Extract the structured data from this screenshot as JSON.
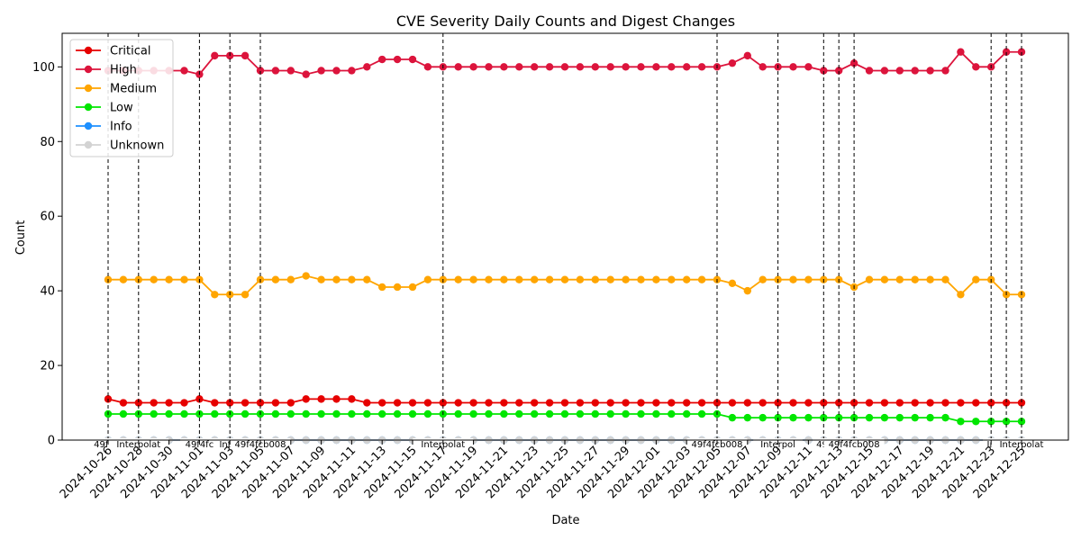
{
  "chart_data": {
    "type": "line",
    "title": "CVE Severity Daily Counts and Digest Changes",
    "xlabel": "Date",
    "ylabel": "Count",
    "ylim": [
      0,
      109
    ],
    "y_ticks": [
      0,
      20,
      40,
      60,
      80,
      100
    ],
    "grid": false,
    "legend_position": "top-left",
    "x": [
      "2024-10-26",
      "2024-10-27",
      "2024-10-28",
      "2024-10-29",
      "2024-10-30",
      "2024-10-31",
      "2024-11-01",
      "2024-11-02",
      "2024-11-03",
      "2024-11-04",
      "2024-11-05",
      "2024-11-06",
      "2024-11-07",
      "2024-11-08",
      "2024-11-09",
      "2024-11-10",
      "2024-11-11",
      "2024-11-12",
      "2024-11-13",
      "2024-11-14",
      "2024-11-15",
      "2024-11-16",
      "2024-11-17",
      "2024-11-18",
      "2024-11-19",
      "2024-11-20",
      "2024-11-21",
      "2024-11-22",
      "2024-11-23",
      "2024-11-24",
      "2024-11-25",
      "2024-11-26",
      "2024-11-27",
      "2024-11-28",
      "2024-11-29",
      "2024-11-30",
      "2024-12-01",
      "2024-12-02",
      "2024-12-03",
      "2024-12-04",
      "2024-12-05",
      "2024-12-06",
      "2024-12-07",
      "2024-12-08",
      "2024-12-09",
      "2024-12-10",
      "2024-12-11",
      "2024-12-12",
      "2024-12-13",
      "2024-12-14",
      "2024-12-15",
      "2024-12-16",
      "2024-12-17",
      "2024-12-18",
      "2024-12-19",
      "2024-12-20",
      "2024-12-21",
      "2024-12-22",
      "2024-12-23",
      "2024-12-24",
      "2024-12-25"
    ],
    "x_tick_labels": [
      "2024-10-26",
      "2024-10-28",
      "2024-10-30",
      "2024-11-01",
      "2024-11-03",
      "2024-11-05",
      "2024-11-07",
      "2024-11-09",
      "2024-11-11",
      "2024-11-13",
      "2024-11-15",
      "2024-11-17",
      "2024-11-19",
      "2024-11-21",
      "2024-11-23",
      "2024-11-25",
      "2024-11-27",
      "2024-11-29",
      "2024-12-01",
      "2024-12-03",
      "2024-12-05",
      "2024-12-07",
      "2024-12-09",
      "2024-12-11",
      "2024-12-13",
      "2024-12-15",
      "2024-12-17",
      "2024-12-19",
      "2024-12-21",
      "2024-12-23",
      "2024-12-25"
    ],
    "series": [
      {
        "name": "Critical",
        "color": "#e60000",
        "values": [
          11,
          10,
          10,
          10,
          10,
          10,
          11,
          10,
          10,
          10,
          10,
          10,
          10,
          11,
          11,
          11,
          11,
          10,
          10,
          10,
          10,
          10,
          10,
          10,
          10,
          10,
          10,
          10,
          10,
          10,
          10,
          10,
          10,
          10,
          10,
          10,
          10,
          10,
          10,
          10,
          10,
          10,
          10,
          10,
          10,
          10,
          10,
          10,
          10,
          10,
          10,
          10,
          10,
          10,
          10,
          10,
          10,
          10,
          10,
          10,
          10
        ]
      },
      {
        "name": "High",
        "color": "#dc143c",
        "values": [
          99,
          99,
          99,
          99,
          99,
          99,
          98,
          103,
          103,
          103,
          99,
          99,
          99,
          98,
          99,
          99,
          99,
          100,
          102,
          102,
          102,
          100,
          100,
          100,
          100,
          100,
          100,
          100,
          100,
          100,
          100,
          100,
          100,
          100,
          100,
          100,
          100,
          100,
          100,
          100,
          100,
          101,
          103,
          100,
          100,
          100,
          100,
          99,
          99,
          101,
          99,
          99,
          99,
          99,
          99,
          99,
          104,
          100,
          100,
          104,
          104
        ]
      },
      {
        "name": "Medium",
        "color": "#ffa500",
        "values": [
          43,
          43,
          43,
          43,
          43,
          43,
          43,
          39,
          39,
          39,
          43,
          43,
          43,
          44,
          43,
          43,
          43,
          43,
          41,
          41,
          41,
          43,
          43,
          43,
          43,
          43,
          43,
          43,
          43,
          43,
          43,
          43,
          43,
          43,
          43,
          43,
          43,
          43,
          43,
          43,
          43,
          42,
          40,
          43,
          43,
          43,
          43,
          43,
          43,
          41,
          43,
          43,
          43,
          43,
          43,
          43,
          39,
          43,
          43,
          39,
          39
        ]
      },
      {
        "name": "Low",
        "color": "#00e600",
        "values": [
          7,
          7,
          7,
          7,
          7,
          7,
          7,
          7,
          7,
          7,
          7,
          7,
          7,
          7,
          7,
          7,
          7,
          7,
          7,
          7,
          7,
          7,
          7,
          7,
          7,
          7,
          7,
          7,
          7,
          7,
          7,
          7,
          7,
          7,
          7,
          7,
          7,
          7,
          7,
          7,
          7,
          6,
          6,
          6,
          6,
          6,
          6,
          6,
          6,
          6,
          6,
          6,
          6,
          6,
          6,
          6,
          5,
          5,
          5,
          5,
          5
        ]
      },
      {
        "name": "Info",
        "color": "#1e90ff",
        "values": [
          0,
          0,
          0,
          0,
          0,
          0,
          0,
          0,
          0,
          0,
          0,
          0,
          0,
          0,
          0,
          0,
          0,
          0,
          0,
          0,
          0,
          0,
          0,
          0,
          0,
          0,
          0,
          0,
          0,
          0,
          0,
          0,
          0,
          0,
          0,
          0,
          0,
          0,
          0,
          0,
          0,
          0,
          0,
          0,
          0,
          0,
          0,
          0,
          0,
          0,
          0,
          0,
          0,
          0,
          0,
          0,
          0,
          0,
          0,
          0,
          0
        ]
      },
      {
        "name": "Unknown",
        "color": "#d3d3d3",
        "values": [
          0,
          0,
          0,
          0,
          0,
          0,
          0,
          0,
          0,
          0,
          0,
          0,
          0,
          0,
          0,
          0,
          0,
          0,
          0,
          0,
          0,
          0,
          0,
          0,
          0,
          0,
          0,
          0,
          0,
          0,
          0,
          0,
          0,
          0,
          0,
          0,
          0,
          0,
          0,
          0,
          0,
          0,
          0,
          0,
          0,
          0,
          0,
          0,
          0,
          0,
          0,
          0,
          0,
          0,
          0,
          0,
          0,
          0,
          0,
          0,
          0
        ]
      }
    ],
    "digest_changes": [
      {
        "date": "2024-10-26",
        "label": "49f4fc"
      },
      {
        "date": "2024-10-28",
        "label": "Interpolat"
      },
      {
        "date": "2024-11-01",
        "label": "49f4fc"
      },
      {
        "date": "2024-11-03",
        "label": "Inter"
      },
      {
        "date": "2024-11-05",
        "label": "49f4fcb008"
      },
      {
        "date": "2024-11-17",
        "label": "Interpolat"
      },
      {
        "date": "2024-12-05",
        "label": "49f4fcb008"
      },
      {
        "date": "2024-12-09",
        "label": "Interpol"
      },
      {
        "date": "2024-12-12",
        "label": "49f"
      },
      {
        "date": "2024-12-13",
        "label": "In"
      },
      {
        "date": "2024-12-14",
        "label": "49f4fcb008"
      },
      {
        "date": "2024-12-23",
        "label": "In"
      },
      {
        "date": "2024-12-24",
        "label": "49f"
      },
      {
        "date": "2024-12-25",
        "label": "Interpolat"
      }
    ]
  }
}
